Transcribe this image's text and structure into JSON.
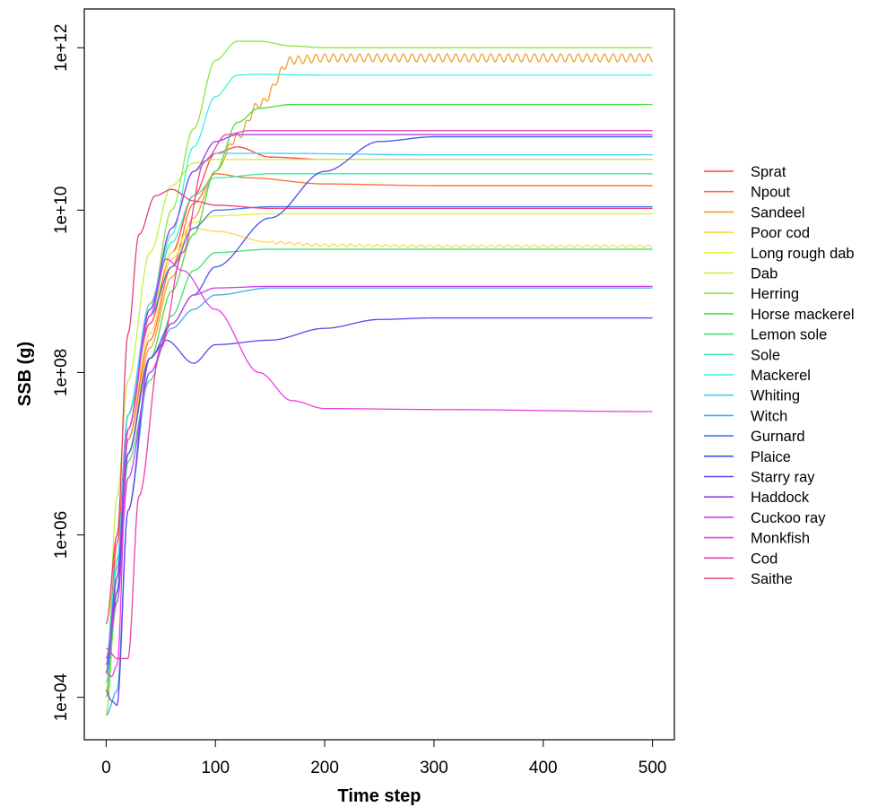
{
  "chart_data": {
    "type": "line",
    "title": "",
    "xlabel": "Time step",
    "ylabel": "SSB (g)",
    "x_scale": "linear",
    "y_scale": "log",
    "xlim": [
      -20,
      520
    ],
    "ylim": [
      3000,
      3000000000000
    ],
    "x_ticks": [
      0,
      100,
      200,
      300,
      400,
      500
    ],
    "x_tick_labels": [
      "0",
      "100",
      "200",
      "300",
      "400",
      "500"
    ],
    "y_ticks": [
      10000,
      1000000,
      100000000,
      10000000000,
      1000000000000
    ],
    "y_tick_labels": [
      "1e+04",
      "1e+06",
      "1e+08",
      "1e+10",
      "1e+12"
    ],
    "grid": false,
    "legend_position": "right",
    "series": [
      {
        "name": "Sprat",
        "color": "#FF4040",
        "points": [
          [
            0,
            20000
          ],
          [
            10,
            800000
          ],
          [
            20,
            30000000
          ],
          [
            40,
            400000000
          ],
          [
            60,
            3000000000
          ],
          [
            80,
            15000000000
          ],
          [
            100,
            50000000000
          ],
          [
            120,
            60000000000
          ],
          [
            150,
            45000000000
          ],
          [
            200,
            42000000000
          ],
          [
            300,
            42000000000
          ],
          [
            500,
            42000000000
          ]
        ]
      },
      {
        "name": "Npout",
        "color": "#FF6A30",
        "points": [
          [
            0,
            15000
          ],
          [
            10,
            200000
          ],
          [
            20,
            15000000
          ],
          [
            40,
            250000000
          ],
          [
            60,
            2000000000
          ],
          [
            80,
            12000000000
          ],
          [
            100,
            28000000000
          ],
          [
            130,
            25000000000
          ],
          [
            200,
            21000000000
          ],
          [
            300,
            20000000000
          ],
          [
            500,
            20000000000
          ]
        ]
      },
      {
        "name": "Sandeel",
        "color": "#F0A030",
        "points": [
          [
            0,
            12000
          ],
          [
            10,
            150000
          ],
          [
            20,
            10000000
          ],
          [
            40,
            200000000
          ],
          [
            60,
            1500000000
          ],
          [
            80,
            8000000000
          ],
          [
            100,
            30000000000
          ],
          [
            120,
            80000000000
          ],
          [
            140,
            200000000000
          ],
          [
            170,
            700000000000
          ],
          [
            200,
            750000000000
          ],
          [
            300,
            750000000000
          ],
          [
            400,
            750000000000
          ],
          [
            500,
            750000000000
          ]
        ],
        "oscillation": {
          "start": 110,
          "period": 8,
          "amplitude": 0.05
        }
      },
      {
        "name": "Poor cod",
        "color": "#FFD84A",
        "points": [
          [
            0,
            20000
          ],
          [
            10,
            300000
          ],
          [
            20,
            20000000
          ],
          [
            40,
            300000000
          ],
          [
            60,
            2500000000
          ],
          [
            80,
            6000000000
          ],
          [
            100,
            5500000000
          ],
          [
            150,
            4000000000
          ],
          [
            200,
            3700000000
          ],
          [
            300,
            3600000000
          ],
          [
            500,
            3600000000
          ]
        ],
        "oscillation": {
          "start": 150,
          "period": 8,
          "amplitude": 0.015
        }
      },
      {
        "name": "Long rough dab",
        "color": "#E8F040",
        "points": [
          [
            0,
            25000
          ],
          [
            10,
            400000
          ],
          [
            20,
            30000000
          ],
          [
            40,
            500000000
          ],
          [
            60,
            3000000000
          ],
          [
            80,
            7000000000
          ],
          [
            100,
            8500000000
          ],
          [
            150,
            9000000000
          ],
          [
            200,
            9000000000
          ],
          [
            300,
            9000000000
          ],
          [
            500,
            9000000000
          ]
        ]
      },
      {
        "name": "Dab",
        "color": "#C6F040",
        "points": [
          [
            0,
            20000
          ],
          [
            10,
            3000000
          ],
          [
            20,
            80000000
          ],
          [
            40,
            3000000000
          ],
          [
            60,
            20000000000
          ],
          [
            80,
            38000000000
          ],
          [
            100,
            42000000000
          ],
          [
            150,
            42000000000
          ],
          [
            300,
            42000000000
          ],
          [
            500,
            42000000000
          ]
        ]
      },
      {
        "name": "Herring",
        "color": "#88E840",
        "points": [
          [
            0,
            6000
          ],
          [
            10,
            300000
          ],
          [
            20,
            30000000
          ],
          [
            40,
            600000000
          ],
          [
            60,
            10000000000
          ],
          [
            80,
            100000000000
          ],
          [
            100,
            700000000000
          ],
          [
            120,
            1200000000000
          ],
          [
            140,
            1200000000000
          ],
          [
            170,
            1050000000000
          ],
          [
            200,
            1000000000000
          ],
          [
            300,
            1000000000000
          ],
          [
            500,
            1000000000000
          ]
        ]
      },
      {
        "name": "Horse mackerel",
        "color": "#44E040",
        "points": [
          [
            0,
            10000
          ],
          [
            10,
            200000
          ],
          [
            20,
            10000000
          ],
          [
            40,
            150000000
          ],
          [
            60,
            1000000000
          ],
          [
            80,
            5000000000
          ],
          [
            100,
            30000000000
          ],
          [
            120,
            120000000000
          ],
          [
            140,
            180000000000
          ],
          [
            170,
            200000000000
          ],
          [
            200,
            200000000000
          ],
          [
            300,
            200000000000
          ],
          [
            500,
            200000000000
          ]
        ]
      },
      {
        "name": "Lemon sole",
        "color": "#40E070",
        "points": [
          [
            0,
            20000
          ],
          [
            10,
            150000
          ],
          [
            20,
            8000000
          ],
          [
            40,
            80000000
          ],
          [
            60,
            500000000
          ],
          [
            80,
            1800000000
          ],
          [
            100,
            3000000000
          ],
          [
            150,
            3300000000
          ],
          [
            300,
            3300000000
          ],
          [
            500,
            3300000000
          ]
        ]
      },
      {
        "name": "Sole",
        "color": "#40E8B0",
        "points": [
          [
            0,
            30000
          ],
          [
            10,
            500000
          ],
          [
            20,
            30000000
          ],
          [
            40,
            600000000
          ],
          [
            60,
            4000000000
          ],
          [
            80,
            15000000000
          ],
          [
            100,
            25000000000
          ],
          [
            150,
            28000000000
          ],
          [
            300,
            28000000000
          ],
          [
            500,
            28000000000
          ]
        ]
      },
      {
        "name": "Mackerel",
        "color": "#40F0E0",
        "points": [
          [
            0,
            15000
          ],
          [
            10,
            300000
          ],
          [
            20,
            20000000
          ],
          [
            40,
            500000000
          ],
          [
            60,
            5000000000
          ],
          [
            80,
            60000000000
          ],
          [
            100,
            250000000000
          ],
          [
            120,
            460000000000
          ],
          [
            140,
            470000000000
          ],
          [
            200,
            460000000000
          ],
          [
            300,
            460000000000
          ],
          [
            500,
            460000000000
          ]
        ]
      },
      {
        "name": "Whiting",
        "color": "#40D0F0",
        "points": [
          [
            0,
            25000
          ],
          [
            10,
            400000
          ],
          [
            20,
            30000000
          ],
          [
            40,
            700000000
          ],
          [
            60,
            6000000000
          ],
          [
            80,
            30000000000
          ],
          [
            100,
            50000000000
          ],
          [
            150,
            50000000000
          ],
          [
            300,
            48000000000
          ],
          [
            500,
            48000000000
          ]
        ]
      },
      {
        "name": "Witch",
        "color": "#40A8F0",
        "points": [
          [
            0,
            6000
          ],
          [
            10,
            12000
          ],
          [
            20,
            2000000
          ],
          [
            40,
            100000000
          ],
          [
            60,
            350000000
          ],
          [
            80,
            600000000
          ],
          [
            100,
            900000000
          ],
          [
            150,
            1100000000
          ],
          [
            300,
            1100000000
          ],
          [
            500,
            1100000000
          ]
        ]
      },
      {
        "name": "Gurnard",
        "color": "#4078F0",
        "points": [
          [
            0,
            25000
          ],
          [
            10,
            300000
          ],
          [
            20,
            20000000
          ],
          [
            40,
            500000000
          ],
          [
            60,
            2000000000
          ],
          [
            80,
            6000000000
          ],
          [
            100,
            10000000000
          ],
          [
            150,
            11000000000
          ],
          [
            300,
            11000000000
          ],
          [
            500,
            11000000000
          ]
        ]
      },
      {
        "name": "Plaice",
        "color": "#4850E8",
        "points": [
          [
            0,
            20000
          ],
          [
            10,
            200000
          ],
          [
            20,
            10000000
          ],
          [
            40,
            150000000
          ],
          [
            60,
            400000000
          ],
          [
            80,
            900000000
          ],
          [
            100,
            2000000000
          ],
          [
            150,
            8000000000
          ],
          [
            200,
            30000000000
          ],
          [
            250,
            70000000000
          ],
          [
            300,
            80000000000
          ],
          [
            500,
            80000000000
          ]
        ]
      },
      {
        "name": "Starry ray",
        "color": "#6840F0",
        "points": [
          [
            0,
            12000
          ],
          [
            5,
            9000
          ],
          [
            10,
            8000
          ],
          [
            20,
            2000000
          ],
          [
            40,
            150000000
          ],
          [
            55,
            250000000
          ],
          [
            80,
            130000000
          ],
          [
            100,
            220000000
          ],
          [
            150,
            250000000
          ],
          [
            200,
            350000000
          ],
          [
            250,
            450000000
          ],
          [
            300,
            470000000
          ],
          [
            500,
            470000000
          ]
        ]
      },
      {
        "name": "Haddock",
        "color": "#9840E8",
        "points": [
          [
            0,
            20000
          ],
          [
            10,
            300000
          ],
          [
            20,
            20000000
          ],
          [
            40,
            600000000
          ],
          [
            60,
            6000000000
          ],
          [
            80,
            30000000000
          ],
          [
            100,
            70000000000
          ],
          [
            120,
            85000000000
          ],
          [
            150,
            85000000000
          ],
          [
            300,
            85000000000
          ],
          [
            500,
            85000000000
          ]
        ]
      },
      {
        "name": "Cuckoo ray",
        "color": "#C840E8",
        "points": [
          [
            0,
            30000
          ],
          [
            10,
            150000
          ],
          [
            20,
            5000000
          ],
          [
            40,
            100000000
          ],
          [
            60,
            400000000
          ],
          [
            80,
            900000000
          ],
          [
            100,
            1100000000
          ],
          [
            150,
            1150000000
          ],
          [
            300,
            1150000000
          ],
          [
            500,
            1150000000
          ]
        ]
      },
      {
        "name": "Monkfish",
        "color": "#E840E0",
        "points": [
          [
            0,
            20000
          ],
          [
            5,
            18000
          ],
          [
            10,
            25000
          ],
          [
            20,
            20000000
          ],
          [
            40,
            500000000
          ],
          [
            55,
            2500000000
          ],
          [
            70,
            1800000000
          ],
          [
            100,
            600000000
          ],
          [
            140,
            100000000
          ],
          [
            170,
            45000000
          ],
          [
            200,
            36000000
          ],
          [
            300,
            35000000
          ],
          [
            500,
            33000000
          ]
        ]
      },
      {
        "name": "Cod",
        "color": "#E840A8",
        "points": [
          [
            0,
            40000
          ],
          [
            10,
            30000
          ],
          [
            20,
            30000
          ],
          [
            30,
            3000000
          ],
          [
            50,
            200000000
          ],
          [
            70,
            3000000000
          ],
          [
            90,
            40000000000
          ],
          [
            110,
            85000000000
          ],
          [
            130,
            95000000000
          ],
          [
            200,
            95000000000
          ],
          [
            300,
            95000000000
          ],
          [
            500,
            95000000000
          ]
        ]
      },
      {
        "name": "Saithe",
        "color": "#E84078",
        "points": [
          [
            0,
            80000
          ],
          [
            10,
            1000000
          ],
          [
            20,
            300000000
          ],
          [
            30,
            5000000000
          ],
          [
            45,
            15000000000
          ],
          [
            60,
            18000000000
          ],
          [
            80,
            13000000000
          ],
          [
            100,
            11500000000
          ],
          [
            150,
            10500000000
          ],
          [
            300,
            10500000000
          ],
          [
            500,
            10500000000
          ]
        ]
      }
    ]
  }
}
